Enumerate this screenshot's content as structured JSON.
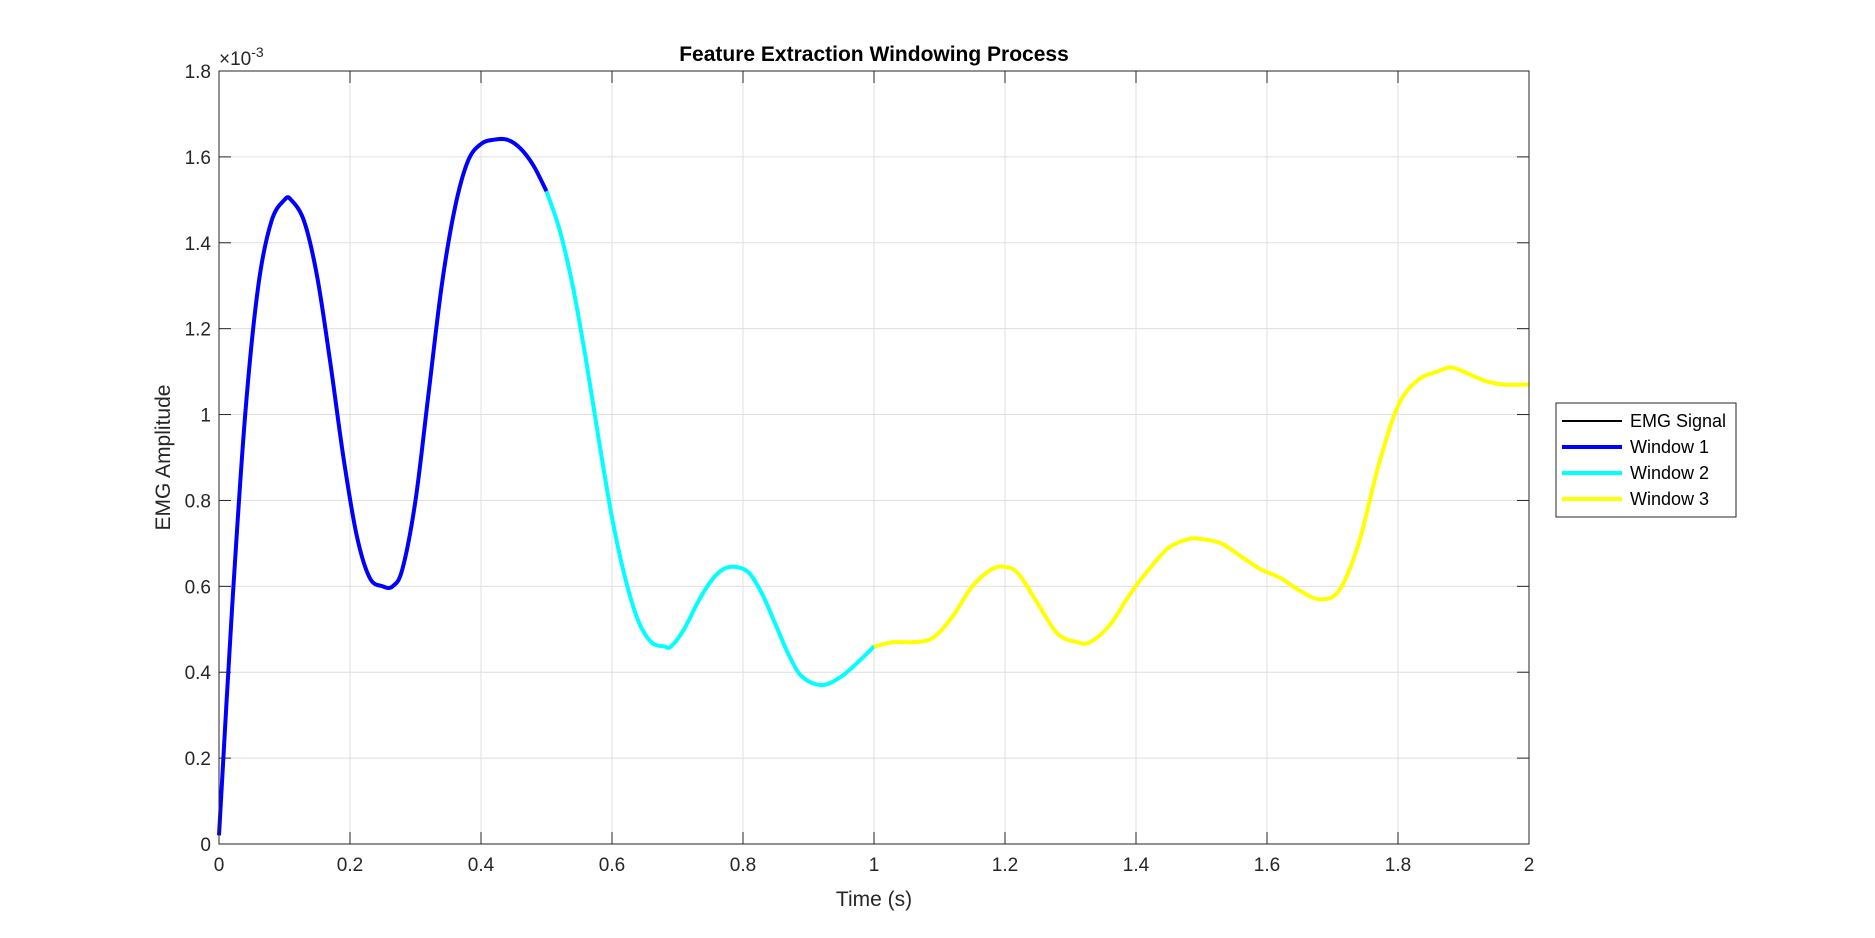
{
  "chart_data": {
    "type": "line",
    "title": "Feature Extraction Windowing Process",
    "xlabel": "Time (s)",
    "ylabel": "EMG Amplitude",
    "y_exponent_label": "×10",
    "y_exponent_power": "-3",
    "xlim": [
      0,
      2
    ],
    "ylim": [
      0,
      1.8
    ],
    "y_scale_factor": 0.001,
    "xticks": [
      "0",
      "0.2",
      "0.4",
      "0.6",
      "0.8",
      "1",
      "1.2",
      "1.4",
      "1.6",
      "1.8",
      "2"
    ],
    "yticks": [
      "0",
      "0.2",
      "0.4",
      "0.6",
      "0.8",
      "1",
      "1.2",
      "1.4",
      "1.6",
      "1.8"
    ],
    "grid": true,
    "legend_placement": "outside-right",
    "series": [
      {
        "name": "EMG Signal",
        "color": "#000000",
        "x": [],
        "y": []
      },
      {
        "name": "Window 1",
        "color": "#0000ff",
        "x": [
          0.0,
          0.02,
          0.04,
          0.06,
          0.08,
          0.1,
          0.11,
          0.13,
          0.15,
          0.17,
          0.19,
          0.21,
          0.23,
          0.25,
          0.265,
          0.28,
          0.3,
          0.32,
          0.34,
          0.36,
          0.38,
          0.4,
          0.42,
          0.44,
          0.46,
          0.48,
          0.5
        ],
        "y": [
          0.02,
          0.55,
          1.0,
          1.3,
          1.45,
          1.5,
          1.5,
          1.45,
          1.32,
          1.12,
          0.9,
          0.72,
          0.62,
          0.6,
          0.6,
          0.64,
          0.8,
          1.05,
          1.3,
          1.48,
          1.59,
          1.63,
          1.64,
          1.64,
          1.62,
          1.58,
          1.52
        ]
      },
      {
        "name": "Window 2",
        "color": "#00ffff",
        "x": [
          0.5,
          0.52,
          0.54,
          0.56,
          0.58,
          0.6,
          0.62,
          0.64,
          0.66,
          0.68,
          0.69,
          0.71,
          0.73,
          0.75,
          0.77,
          0.79,
          0.81,
          0.83,
          0.85,
          0.87,
          0.89,
          0.92,
          0.95,
          0.98,
          1.0
        ],
        "y": [
          1.52,
          1.43,
          1.3,
          1.13,
          0.94,
          0.76,
          0.62,
          0.52,
          0.47,
          0.46,
          0.46,
          0.5,
          0.56,
          0.61,
          0.64,
          0.645,
          0.63,
          0.58,
          0.51,
          0.44,
          0.39,
          0.37,
          0.39,
          0.43,
          0.46
        ]
      },
      {
        "name": "Window 3",
        "color": "#ffff00",
        "x": [
          1.0,
          1.03,
          1.06,
          1.09,
          1.12,
          1.15,
          1.18,
          1.2,
          1.22,
          1.25,
          1.28,
          1.31,
          1.33,
          1.36,
          1.39,
          1.42,
          1.45,
          1.48,
          1.5,
          1.53,
          1.56,
          1.59,
          1.62,
          1.65,
          1.68,
          1.71,
          1.74,
          1.77,
          1.8,
          1.83,
          1.86,
          1.88,
          1.9,
          1.93,
          1.96,
          2.0
        ],
        "y": [
          0.46,
          0.47,
          0.47,
          0.48,
          0.53,
          0.6,
          0.64,
          0.645,
          0.63,
          0.56,
          0.49,
          0.47,
          0.47,
          0.51,
          0.58,
          0.64,
          0.69,
          0.71,
          0.71,
          0.7,
          0.67,
          0.64,
          0.62,
          0.59,
          0.57,
          0.59,
          0.7,
          0.88,
          1.02,
          1.08,
          1.1,
          1.11,
          1.1,
          1.08,
          1.07,
          1.07
        ]
      }
    ]
  }
}
